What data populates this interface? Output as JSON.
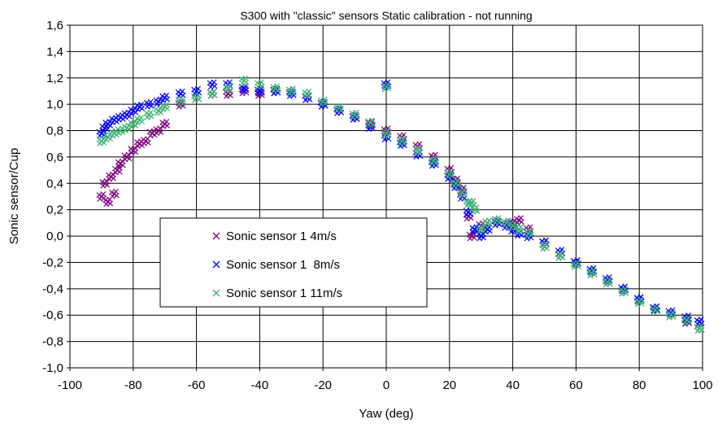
{
  "chart_data": {
    "type": "scatter",
    "title": "S300 with \"classic\" sensors Static calibration - not running",
    "xlabel": "Yaw (deg)",
    "ylabel": "Sonic sensor/Cup",
    "xlim": [
      -100,
      100
    ],
    "ylim": [
      -1.0,
      1.6
    ],
    "x_ticks": [
      -100,
      -80,
      -60,
      -40,
      -20,
      0,
      20,
      40,
      60,
      80,
      100
    ],
    "x_tick_labels": [
      "-100",
      "-80",
      "-60",
      "-40",
      "-20",
      "0",
      "20",
      "40",
      "60",
      "80",
      "100"
    ],
    "y_ticks": [
      -1.0,
      -0.8,
      -0.6,
      -0.4,
      -0.2,
      0.0,
      0.2,
      0.4,
      0.6,
      0.8,
      1.0,
      1.2,
      1.4,
      1.6
    ],
    "y_tick_labels": [
      "-1,0",
      "-0,8",
      "-0,6",
      "-0,4",
      "-0,2",
      "0,0",
      "0,2",
      "0,4",
      "0,6",
      "0,8",
      "1,0",
      "1,2",
      "1,4",
      "1,6"
    ],
    "grid": true,
    "legend_position": "center-left",
    "marker": "×",
    "series": [
      {
        "name": "Sonic sensor 1 4m/s",
        "color": "#800080",
        "x": [
          -90,
          -89,
          -88,
          -87,
          -86,
          -85,
          -84,
          -82,
          -80,
          -78,
          -76,
          -74,
          -72,
          -70,
          -65,
          -60,
          -55,
          -50,
          -45,
          -40,
          -35,
          -30,
          -25,
          -20,
          -15,
          -10,
          -5,
          0,
          5,
          10,
          15,
          20,
          22,
          24,
          26,
          27,
          28,
          30,
          32,
          35,
          38,
          40,
          42,
          45,
          50,
          55,
          60,
          65,
          70,
          75,
          80,
          85,
          90,
          95,
          99
        ],
        "y": [
          0.3,
          0.4,
          0.26,
          0.45,
          0.32,
          0.5,
          0.55,
          0.6,
          0.65,
          0.7,
          0.72,
          0.78,
          0.8,
          0.85,
          1.0,
          1.05,
          1.08,
          1.08,
          1.1,
          1.08,
          1.1,
          1.1,
          1.05,
          1.0,
          0.95,
          0.9,
          0.85,
          0.8,
          0.75,
          0.68,
          0.6,
          0.5,
          0.42,
          0.35,
          0.15,
          0.0,
          0.05,
          0.08,
          0.1,
          0.1,
          0.1,
          0.1,
          0.12,
          0.05,
          -0.05,
          -0.15,
          -0.2,
          -0.28,
          -0.35,
          -0.42,
          -0.48,
          -0.55,
          -0.6,
          -0.65,
          -0.7
        ]
      },
      {
        "name": "Sonic sensor 1  8m/s",
        "color": "#0000ff",
        "x": [
          -90,
          -89,
          -88,
          -86,
          -84,
          -82,
          -80,
          -78,
          -75,
          -72,
          -70,
          -65,
          -60,
          -55,
          -50,
          -45,
          -40,
          -35,
          -30,
          -25,
          -20,
          -15,
          -10,
          -5,
          0,
          0,
          5,
          10,
          15,
          20,
          22,
          24,
          26,
          28,
          30,
          32,
          35,
          38,
          40,
          42,
          45,
          50,
          55,
          60,
          65,
          70,
          75,
          80,
          85,
          90,
          95,
          99
        ],
        "y": [
          0.78,
          0.82,
          0.85,
          0.88,
          0.9,
          0.92,
          0.95,
          0.98,
          1.0,
          1.02,
          1.05,
          1.08,
          1.1,
          1.15,
          1.15,
          1.12,
          1.1,
          1.1,
          1.08,
          1.05,
          1.0,
          0.95,
          0.9,
          0.83,
          0.75,
          1.15,
          0.7,
          0.62,
          0.55,
          0.45,
          0.38,
          0.3,
          0.18,
          0.05,
          0.0,
          0.05,
          0.1,
          0.08,
          0.05,
          0.02,
          0.0,
          -0.05,
          -0.12,
          -0.2,
          -0.26,
          -0.33,
          -0.4,
          -0.48,
          -0.55,
          -0.58,
          -0.62,
          -0.65
        ]
      },
      {
        "name": "Sonic sensor 1 11m/s",
        "color": "#3cb371",
        "x": [
          -90,
          -88,
          -86,
          -84,
          -82,
          -80,
          -78,
          -75,
          -72,
          -70,
          -65,
          -60,
          -55,
          -50,
          -45,
          -40,
          -35,
          -30,
          -25,
          -20,
          -15,
          -10,
          -5,
          0,
          0,
          5,
          10,
          15,
          20,
          22,
          24,
          26,
          27,
          28,
          30,
          32,
          35,
          38,
          40,
          42,
          45,
          50,
          55,
          60,
          65,
          70,
          75,
          80,
          85,
          90,
          95,
          99
        ],
        "y": [
          0.72,
          0.75,
          0.78,
          0.8,
          0.82,
          0.85,
          0.88,
          0.92,
          0.95,
          0.98,
          1.02,
          1.05,
          1.08,
          1.12,
          1.18,
          1.15,
          1.12,
          1.1,
          1.08,
          1.02,
          0.97,
          0.92,
          0.86,
          0.78,
          1.13,
          0.72,
          0.65,
          0.57,
          0.47,
          0.4,
          0.33,
          0.25,
          0.25,
          0.2,
          0.05,
          0.1,
          0.12,
          0.1,
          0.08,
          0.05,
          0.02,
          -0.08,
          -0.15,
          -0.22,
          -0.28,
          -0.35,
          -0.42,
          -0.5,
          -0.56,
          -0.6,
          -0.64,
          -0.7
        ]
      }
    ]
  }
}
